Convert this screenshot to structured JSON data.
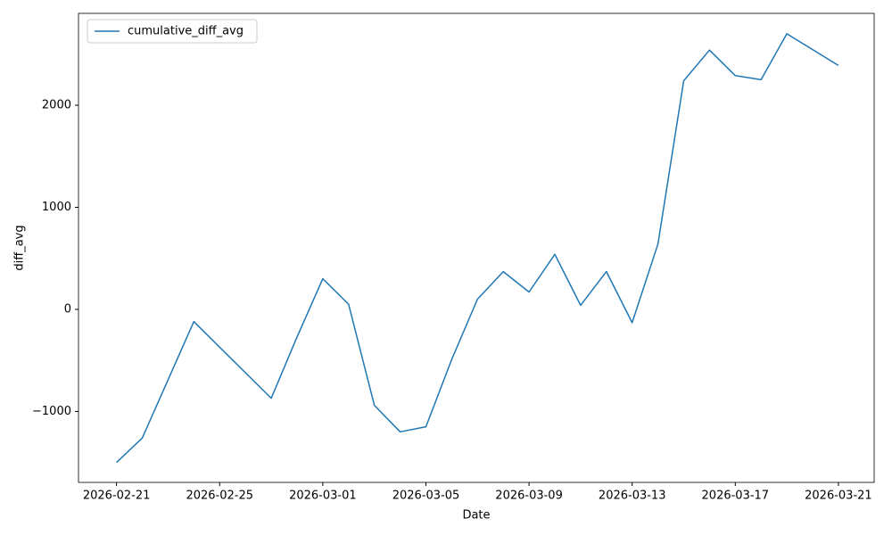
{
  "chart_data": {
    "type": "line",
    "x_label": "Date",
    "y_label": "diff_avg",
    "x": [
      "2026-02-21",
      "2026-02-22",
      "2026-02-24",
      "2026-02-27",
      "2026-02-28",
      "2026-03-01",
      "2026-03-02",
      "2026-03-03",
      "2026-03-04",
      "2026-03-05",
      "2026-03-06",
      "2026-03-07",
      "2026-03-08",
      "2026-03-09",
      "2026-03-10",
      "2026-03-11",
      "2026-03-12",
      "2026-03-13",
      "2026-03-14",
      "2026-03-15",
      "2026-03-16",
      "2026-03-17",
      "2026-03-18",
      "2026-03-19",
      "2026-03-21"
    ],
    "series": [
      {
        "name": "cumulative_diff_avg",
        "color": "#1f77b4",
        "values": [
          -1500,
          -1260,
          -120,
          -870,
          -270,
          300,
          50,
          -940,
          -1200,
          -1150,
          -490,
          100,
          370,
          170,
          540,
          40,
          370,
          -130,
          640,
          2240,
          2540,
          2290,
          2250,
          2700,
          2390
        ]
      }
    ],
    "xlim": [
      "2026-02-19T12:36",
      "2026-03-22T09:16"
    ],
    "xticks": [
      "2026-02-21",
      "2026-02-25",
      "2026-03-01",
      "2026-03-05",
      "2026-03-09",
      "2026-03-13",
      "2026-03-17",
      "2026-03-21"
    ],
    "ylim": [
      -1695,
      2900
    ],
    "yticks": [
      {
        "value": -1000,
        "label": "−1000"
      },
      0,
      1000,
      2000
    ],
    "legend": "upper left",
    "grid": false
  }
}
